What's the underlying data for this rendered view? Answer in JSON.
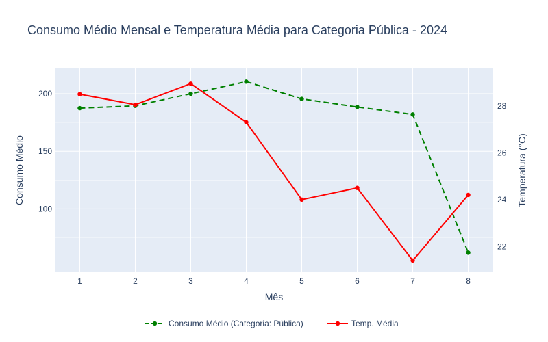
{
  "chart_data": {
    "type": "line",
    "title": "Consumo Médio Mensal e Temperatura Média para Categoria Pública - 2024",
    "xlabel": "Mês",
    "ylabel_left": "Consumo Médio",
    "ylabel_right": "Temperatura (°C)",
    "x": [
      1,
      2,
      3,
      4,
      5,
      6,
      7,
      8
    ],
    "x_ticks": [
      "1",
      "2",
      "3",
      "4",
      "5",
      "6",
      "7",
      "8"
    ],
    "xlim": [
      0.55,
      8.45
    ],
    "ylim_left": [
      45,
      222
    ],
    "ylim_right": [
      20.9,
      29.6
    ],
    "yticks_left": [
      100,
      150,
      200
    ],
    "yticks_right": [
      22,
      24,
      26,
      28
    ],
    "grid": true,
    "legend_position": "bottom",
    "series": [
      {
        "name": "Consumo Médio (Categoria: Pública)",
        "axis": "left",
        "color": "#008000",
        "dash": "dashed",
        "values": [
          187.5,
          189.5,
          200,
          210.5,
          195.5,
          188.5,
          182,
          62
        ]
      },
      {
        "name": "Temp. Média",
        "axis": "right",
        "color": "#ff0000",
        "dash": "solid",
        "values": [
          28.5,
          28.05,
          28.95,
          27.3,
          24,
          24.5,
          21.4,
          24.2
        ]
      }
    ]
  }
}
